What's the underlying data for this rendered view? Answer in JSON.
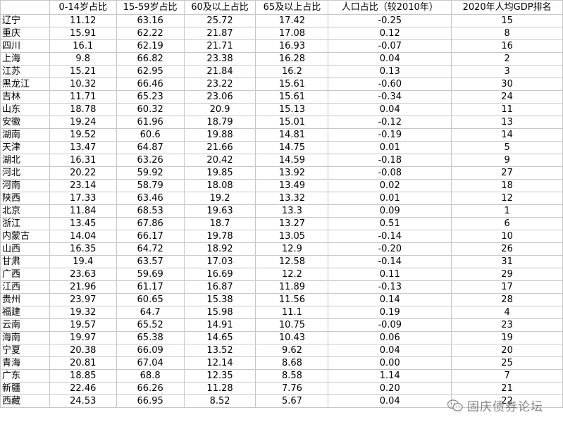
{
  "headers": [
    "",
    "0-14岁占比",
    "15-59岁占比",
    "60及以上占比",
    "65及以上占比",
    "人口占比（较2010年）",
    "2020年人均GDP排名"
  ],
  "rows": [
    {
      "name": "辽宁",
      "a": "11.12",
      "b": "63.16",
      "c": "25.72",
      "d": "17.42",
      "e": "-0.25",
      "f": "15"
    },
    {
      "name": "重庆",
      "a": "15.91",
      "b": "62.22",
      "c": "21.87",
      "d": "17.08",
      "e": "0.12",
      "f": "8"
    },
    {
      "name": "四川",
      "a": "16.1",
      "b": "62.19",
      "c": "21.71",
      "d": "16.93",
      "e": "-0.07",
      "f": "16"
    },
    {
      "name": "上海",
      "a": "9.8",
      "b": "66.82",
      "c": "23.38",
      "d": "16.28",
      "e": "0.04",
      "f": "2"
    },
    {
      "name": "江苏",
      "a": "15.21",
      "b": "62.95",
      "c": "21.84",
      "d": "16.2",
      "e": "0.13",
      "f": "3"
    },
    {
      "name": "黑龙江",
      "a": "10.32",
      "b": "66.46",
      "c": "23.22",
      "d": "15.61",
      "e": "-0.60",
      "f": "30"
    },
    {
      "name": "吉林",
      "a": "11.71",
      "b": "65.23",
      "c": "23.06",
      "d": "15.61",
      "e": "-0.34",
      "f": "24"
    },
    {
      "name": "山东",
      "a": "18.78",
      "b": "60.32",
      "c": "20.9",
      "d": "15.13",
      "e": "0.04",
      "f": "11"
    },
    {
      "name": "安徽",
      "a": "19.24",
      "b": "61.96",
      "c": "18.79",
      "d": "15.01",
      "e": "-0.12",
      "f": "13"
    },
    {
      "name": "湖南",
      "a": "19.52",
      "b": "60.6",
      "c": "19.88",
      "d": "14.81",
      "e": "-0.19",
      "f": "14"
    },
    {
      "name": "天津",
      "a": "13.47",
      "b": "64.87",
      "c": "21.66",
      "d": "14.75",
      "e": "0.01",
      "f": "5"
    },
    {
      "name": "湖北",
      "a": "16.31",
      "b": "63.26",
      "c": "20.42",
      "d": "14.59",
      "e": "-0.18",
      "f": "9"
    },
    {
      "name": "河北",
      "a": "20.22",
      "b": "59.92",
      "c": "19.85",
      "d": "13.92",
      "e": "-0.08",
      "f": "27"
    },
    {
      "name": "河南",
      "a": "23.14",
      "b": "58.79",
      "c": "18.08",
      "d": "13.49",
      "e": "0.02",
      "f": "18"
    },
    {
      "name": "陕西",
      "a": "17.33",
      "b": "63.46",
      "c": "19.2",
      "d": "13.32",
      "e": "0.01",
      "f": "12"
    },
    {
      "name": "北京",
      "a": "11.84",
      "b": "68.53",
      "c": "19.63",
      "d": "13.3",
      "e": "0.09",
      "f": "1"
    },
    {
      "name": "浙江",
      "a": "13.45",
      "b": "67.86",
      "c": "18.7",
      "d": "13.27",
      "e": "0.51",
      "f": "6"
    },
    {
      "name": "内蒙古",
      "a": "14.04",
      "b": "66.17",
      "c": "19.78",
      "d": "13.05",
      "e": "-0.14",
      "f": "10"
    },
    {
      "name": "山西",
      "a": "16.35",
      "b": "64.72",
      "c": "18.92",
      "d": "12.9",
      "e": "-0.20",
      "f": "26"
    },
    {
      "name": "甘肃",
      "a": "19.4",
      "b": "63.57",
      "c": "17.03",
      "d": "12.58",
      "e": "-0.14",
      "f": "31"
    },
    {
      "name": "广西",
      "a": "23.63",
      "b": "59.69",
      "c": "16.69",
      "d": "12.2",
      "e": "0.11",
      "f": "29"
    },
    {
      "name": "江西",
      "a": "21.96",
      "b": "61.17",
      "c": "16.87",
      "d": "11.89",
      "e": "-0.13",
      "f": "17"
    },
    {
      "name": "贵州",
      "a": "23.97",
      "b": "60.65",
      "c": "15.38",
      "d": "11.56",
      "e": "0.14",
      "f": "28"
    },
    {
      "name": "福建",
      "a": "19.32",
      "b": "64.7",
      "c": "15.98",
      "d": "11.1",
      "e": "0.19",
      "f": "4"
    },
    {
      "name": "云南",
      "a": "19.57",
      "b": "65.52",
      "c": "14.91",
      "d": "10.75",
      "e": "-0.09",
      "f": "23"
    },
    {
      "name": "海南",
      "a": "19.97",
      "b": "65.38",
      "c": "14.65",
      "d": "10.43",
      "e": "0.06",
      "f": "19"
    },
    {
      "name": "宁夏",
      "a": "20.38",
      "b": "66.09",
      "c": "13.52",
      "d": "9.62",
      "e": "0.04",
      "f": "20"
    },
    {
      "name": "青海",
      "a": "20.81",
      "b": "67.04",
      "c": "12.14",
      "d": "8.68",
      "e": "0.00",
      "f": "25"
    },
    {
      "name": "广东",
      "a": "18.85",
      "b": "68.8",
      "c": "12.35",
      "d": "8.58",
      "e": "1.14",
      "f": "7"
    },
    {
      "name": "新疆",
      "a": "22.46",
      "b": "66.26",
      "c": "11.28",
      "d": "7.76",
      "e": "0.20",
      "f": "21"
    },
    {
      "name": "西藏",
      "a": "24.53",
      "b": "66.95",
      "c": "8.52",
      "d": "5.67",
      "e": "0.04",
      "f": "22"
    }
  ],
  "watermark": {
    "text": "固庆债券论坛",
    "icon": "wechat-icon"
  },
  "colors": {
    "negative": "#ff0000",
    "grid": "#c8c8c8",
    "text": "#000000"
  }
}
